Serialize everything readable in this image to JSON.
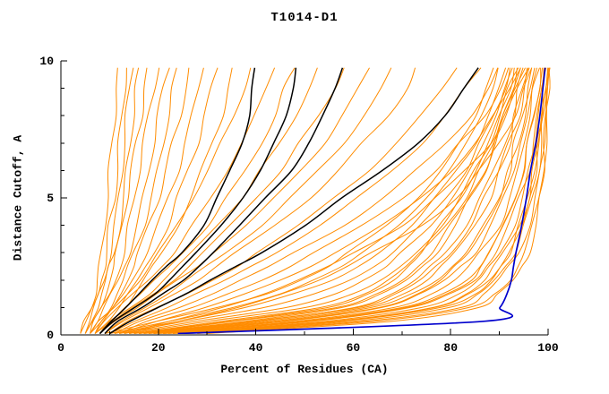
{
  "title": "T1014-D1",
  "axes": {
    "x_label": "Percent of Residues (CA)",
    "y_label": "Distance Cutoff, A"
  },
  "chart_data": {
    "type": "line",
    "title": "T1014-D1",
    "xlabel": "Percent of Residues (CA)",
    "ylabel": "Distance Cutoff, A",
    "xlim": [
      0,
      100
    ],
    "ylim": [
      0,
      10
    ],
    "grid": "off",
    "legend": "none",
    "x_major_ticks": [
      0,
      20,
      40,
      60,
      80,
      100
    ],
    "x_minor_ticks": [
      10,
      30,
      50,
      70,
      90
    ],
    "y_major_ticks": [
      0,
      5,
      10
    ],
    "y_minor_ticks": [
      1,
      2,
      3,
      4,
      6,
      7,
      8,
      9
    ],
    "colors": {
      "orange": "#ff8c00",
      "black": "#000000",
      "blue": "#0000cd"
    },
    "stroke_widths": {
      "orange": 1,
      "black": 1.5,
      "blue": 1.7
    },
    "cutoffs_y": [
      0.05,
      0.5,
      1,
      1.5,
      2,
      2.5,
      3,
      4,
      5,
      6,
      7,
      8,
      9,
      9.75
    ],
    "series": [
      {
        "color": "orange",
        "values": [
          4,
          5,
          6,
          7,
          7.5,
          8,
          8.5,
          9,
          9.5,
          10,
          10.5,
          11,
          11.5,
          12
        ]
      },
      {
        "color": "orange",
        "values": [
          4,
          5,
          6.5,
          7.5,
          8,
          9,
          9.5,
          10,
          11,
          11.5,
          12,
          12.5,
          13,
          13.5
        ]
      },
      {
        "color": "orange",
        "values": [
          5,
          6,
          7,
          8,
          9,
          9.5,
          10,
          11,
          12,
          12.5,
          13,
          13.5,
          14,
          14.5
        ]
      },
      {
        "color": "orange",
        "values": [
          5,
          6,
          7.5,
          8.5,
          9.5,
          10,
          11,
          12,
          13,
          13.5,
          14,
          15,
          15.5,
          16
        ]
      },
      {
        "color": "orange",
        "values": [
          5,
          6.5,
          8,
          9,
          10,
          11,
          11.5,
          12.5,
          13.5,
          14.5,
          15.5,
          16.5,
          17,
          18
        ]
      },
      {
        "color": "orange",
        "values": [
          6,
          7,
          8.5,
          10,
          11,
          12,
          13,
          14,
          15,
          16,
          17,
          18,
          19,
          20
        ]
      },
      {
        "color": "orange",
        "values": [
          6,
          7.5,
          9,
          10.5,
          12,
          13,
          14,
          15.5,
          17,
          18,
          19,
          20,
          21,
          22
        ]
      },
      {
        "color": "orange",
        "values": [
          6,
          8,
          10,
          11.5,
          13,
          14,
          15,
          17,
          18.5,
          20,
          21,
          22,
          23,
          24
        ]
      },
      {
        "color": "orange",
        "values": [
          7,
          8.5,
          10.5,
          12,
          13.5,
          15,
          16,
          18,
          20,
          21.5,
          23,
          24.5,
          25.5,
          26.5
        ]
      },
      {
        "color": "orange",
        "values": [
          7,
          9,
          11,
          13,
          14.5,
          16,
          17.5,
          20,
          22,
          24,
          25.5,
          27,
          28,
          29
        ]
      },
      {
        "color": "orange",
        "values": [
          7,
          9.5,
          12,
          14,
          16,
          17.5,
          19,
          22,
          24,
          26,
          28,
          29.5,
          31,
          32
        ]
      },
      {
        "color": "orange",
        "values": [
          8,
          10,
          13,
          15,
          17,
          19,
          21,
          24,
          26.5,
          29,
          31,
          33,
          34.5,
          35.5
        ]
      },
      {
        "color": "orange",
        "values": [
          6,
          8,
          11,
          13.5,
          16,
          18,
          20,
          24,
          27,
          30,
          33,
          35.5,
          37.5,
          39
        ]
      },
      {
        "color": "orange",
        "values": [
          7,
          9,
          12,
          15,
          18,
          20.5,
          23,
          27,
          31,
          34,
          37,
          40,
          42,
          43.5
        ]
      },
      {
        "color": "orange",
        "values": [
          7,
          10,
          13,
          16.5,
          19.5,
          22.5,
          25,
          30,
          34,
          38,
          41,
          44,
          46,
          48
        ]
      },
      {
        "color": "orange",
        "values": [
          8,
          10,
          14,
          18,
          21,
          24,
          27,
          32,
          37,
          41,
          45,
          48,
          51,
          53
        ]
      },
      {
        "color": "orange",
        "values": [
          8,
          11,
          15,
          19,
          23,
          26,
          29,
          35,
          40,
          45,
          49,
          53,
          56,
          58
        ]
      },
      {
        "color": "orange",
        "values": [
          8,
          11,
          16,
          20,
          24,
          28,
          31,
          38,
          44,
          49,
          54,
          58,
          61,
          63
        ]
      },
      {
        "color": "orange",
        "values": [
          9,
          12,
          17,
          22,
          26,
          30,
          34,
          41,
          47,
          53,
          58,
          62,
          66,
          68
        ]
      },
      {
        "color": "orange",
        "values": [
          9,
          13,
          18,
          23,
          28,
          32,
          36,
          44,
          51,
          57,
          62,
          67,
          71,
          73
        ]
      },
      {
        "color": "orange",
        "values": [
          10,
          14,
          20,
          26,
          31,
          36,
          40,
          49,
          56,
          63,
          69,
          74,
          78,
          81
        ]
      },
      {
        "color": "orange",
        "values": [
          10,
          15,
          22,
          28,
          34,
          39,
          44,
          53,
          61,
          68,
          74,
          79,
          83,
          86
        ]
      },
      {
        "color": "orange",
        "values": [
          11,
          16,
          24,
          31,
          37,
          43,
          48,
          58,
          66,
          73,
          79,
          84,
          88,
          90
        ]
      },
      {
        "color": "orange",
        "values": [
          12,
          18,
          27,
          34,
          41,
          47,
          52,
          62,
          70,
          77,
          82,
          87,
          90,
          92
        ]
      },
      {
        "color": "orange",
        "values": [
          12,
          20,
          30,
          38,
          45,
          51,
          56,
          66,
          74,
          80,
          85,
          89,
          92,
          94
        ]
      },
      {
        "color": "orange",
        "values": [
          13,
          22,
          33,
          42,
          49,
          55,
          60,
          70,
          77,
          83,
          88,
          91,
          94,
          96
        ]
      },
      {
        "color": "orange",
        "values": [
          14,
          24,
          36,
          45,
          53,
          59,
          64,
          74,
          81,
          86,
          90,
          93,
          95,
          97
        ]
      },
      {
        "color": "orange",
        "values": [
          15,
          35,
          55,
          63,
          68,
          71,
          74,
          78,
          82,
          85,
          88,
          90,
          92,
          93
        ]
      },
      {
        "color": "orange",
        "values": [
          16,
          38,
          58,
          66,
          71,
          74,
          77,
          81,
          84,
          87,
          89,
          91,
          93,
          94
        ]
      },
      {
        "color": "orange",
        "values": [
          17,
          40,
          60,
          68,
          73,
          76,
          79,
          83,
          86,
          89,
          91,
          93,
          94,
          95
        ]
      },
      {
        "color": "orange",
        "values": [
          18,
          42,
          62,
          70,
          75,
          78,
          81,
          85,
          88,
          90,
          92,
          94,
          95,
          96
        ]
      },
      {
        "color": "orange",
        "values": [
          18,
          44,
          64,
          72,
          77,
          80,
          83,
          87,
          90,
          92,
          93,
          95,
          96,
          97
        ]
      },
      {
        "color": "orange",
        "values": [
          19,
          46,
          66,
          74,
          79,
          82,
          85,
          88,
          91,
          93,
          94,
          96,
          97,
          98
        ]
      },
      {
        "color": "orange",
        "values": [
          20,
          48,
          68,
          76,
          81,
          84,
          86,
          90,
          92,
          94,
          95,
          96,
          97,
          98
        ]
      },
      {
        "color": "orange",
        "values": [
          20,
          50,
          70,
          78,
          83,
          86,
          88,
          91,
          93,
          95,
          96,
          97,
          98,
          99
        ]
      },
      {
        "color": "orange",
        "values": [
          21,
          52,
          72,
          80,
          85,
          87,
          89,
          92,
          94,
          96,
          97,
          98,
          98.5,
          99
        ]
      },
      {
        "color": "orange",
        "values": [
          22,
          54,
          74,
          82,
          86,
          88,
          90,
          93,
          95,
          96,
          97,
          98,
          99,
          99.5
        ]
      },
      {
        "color": "orange",
        "values": [
          23,
          56,
          76,
          83,
          87,
          89,
          91,
          94,
          96,
          97,
          98,
          98.5,
          99,
          99.5
        ]
      },
      {
        "color": "orange",
        "values": [
          24,
          58,
          78,
          85,
          88,
          90,
          92,
          95,
          96,
          97.5,
          98,
          99,
          99.5,
          100
        ]
      },
      {
        "color": "orange",
        "values": [
          25,
          60,
          80,
          86,
          89,
          91,
          93,
          95,
          97,
          98,
          98.5,
          99,
          99.5,
          100
        ]
      },
      {
        "color": "orange",
        "values": [
          14,
          30,
          50,
          60,
          66,
          70,
          73,
          78,
          82,
          85,
          88,
          90,
          92,
          94
        ]
      },
      {
        "color": "orange",
        "values": [
          13,
          28,
          46,
          56,
          62,
          67,
          70,
          76,
          80,
          84,
          87,
          89,
          91,
          93
        ]
      },
      {
        "color": "orange",
        "values": [
          12,
          26,
          42,
          52,
          59,
          64,
          68,
          74,
          79,
          83,
          86,
          89,
          91,
          92
        ]
      },
      {
        "color": "orange",
        "values": [
          11,
          24,
          38,
          48,
          56,
          61,
          65,
          72,
          77,
          81,
          85,
          88,
          90,
          91
        ]
      },
      {
        "color": "orange",
        "values": [
          10,
          22,
          35,
          45,
          52,
          58,
          62,
          69,
          75,
          80,
          83,
          86,
          89,
          90
        ]
      },
      {
        "color": "orange",
        "values": [
          9,
          20,
          32,
          42,
          49,
          55,
          59,
          67,
          73,
          78,
          82,
          85,
          87,
          89
        ]
      },
      {
        "color": "orange",
        "values": [
          16,
          36,
          57,
          65,
          70,
          73,
          76,
          80,
          84,
          87,
          89,
          91,
          93,
          95
        ]
      },
      {
        "color": "orange",
        "values": [
          17,
          39,
          61,
          69,
          74,
          77,
          80,
          84,
          87,
          90,
          92,
          93,
          95,
          96
        ]
      },
      {
        "color": "orange",
        "values": [
          19,
          45,
          65,
          73,
          78,
          81,
          84,
          87,
          90,
          92,
          94,
          95,
          96,
          97
        ]
      },
      {
        "color": "orange",
        "values": [
          21,
          51,
          71,
          79,
          84,
          86,
          88,
          91,
          93,
          95,
          96,
          97,
          98,
          98.5
        ]
      },
      {
        "color": "orange",
        "values": [
          23,
          57,
          77,
          84,
          88,
          90,
          92,
          94,
          96,
          97,
          98,
          99,
          99.5,
          100
        ]
      },
      {
        "color": "orange",
        "values": [
          26,
          62,
          82,
          87,
          90,
          92,
          94,
          96,
          97.5,
          98.5,
          99,
          99.5,
          100,
          100
        ]
      },
      {
        "color": "orange",
        "values": [
          15,
          33,
          53,
          62,
          67,
          71,
          74,
          79,
          83,
          86,
          89,
          91,
          93,
          94
        ]
      },
      {
        "color": "orange",
        "values": [
          28,
          65,
          84,
          89,
          92,
          93.5,
          95,
          97,
          98,
          99,
          99.3,
          99.6,
          100,
          100
        ]
      },
      {
        "color": "orange",
        "values": [
          30,
          68,
          86,
          90,
          93,
          94.5,
          96,
          97.5,
          98.5,
          99,
          99.5,
          100,
          100,
          100
        ]
      },
      {
        "color": "black",
        "values": [
          8,
          10,
          13,
          16,
          19,
          22,
          25,
          29,
          32,
          35,
          37,
          38.5,
          39.5,
          40
        ]
      },
      {
        "color": "black",
        "values": [
          8,
          11,
          15,
          19,
          22,
          25,
          28,
          33,
          37,
          41,
          44,
          46,
          47.5,
          48.5
        ]
      },
      {
        "color": "black",
        "values": [
          9,
          12,
          17,
          21,
          25,
          28,
          31,
          37,
          42,
          47,
          51,
          54,
          56,
          57.5
        ]
      },
      {
        "color": "black",
        "values": [
          10,
          14,
          20,
          26,
          31,
          36,
          41,
          50,
          58,
          66,
          73,
          79,
          83,
          85.5
        ]
      },
      {
        "color": "blue",
        "values": [
          24,
          87,
          90,
          91.5,
          92.5,
          93,
          93.5,
          94.5,
          95.5,
          96.5,
          97.5,
          98.2,
          99,
          99.5
        ]
      }
    ]
  }
}
